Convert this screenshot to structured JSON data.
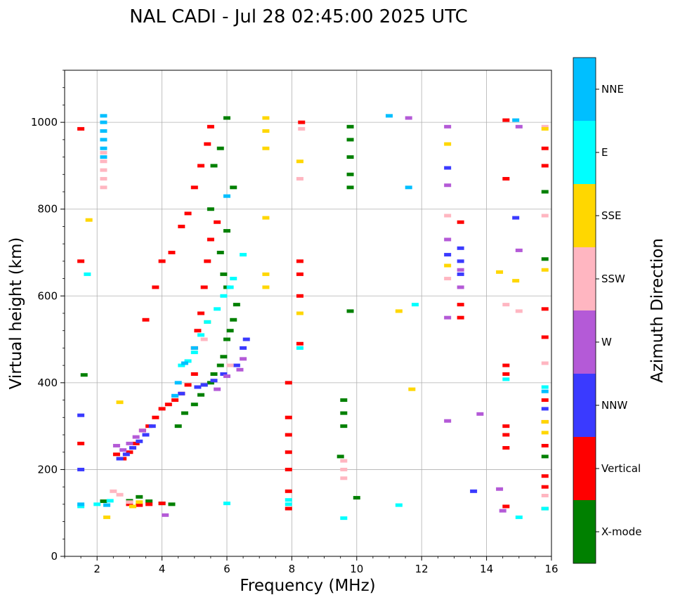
{
  "chart_data": {
    "type": "scatter",
    "title": "NAL CADI - Jul 28 02:45:00 2025 UTC",
    "xlabel": "Frequency (MHz)",
    "ylabel": "Virtual height (km)",
    "xlim": [
      1,
      16
    ],
    "ylim": [
      0,
      1120
    ],
    "xticks": [
      2,
      4,
      6,
      8,
      10,
      12,
      14,
      16
    ],
    "xtick_labels": [
      "2",
      "4",
      "6",
      "8",
      "10",
      "12",
      "14",
      "16"
    ],
    "yticks": [
      0,
      200,
      400,
      600,
      800,
      1000
    ],
    "ytick_labels": [
      "0",
      "200",
      "400",
      "600",
      "800",
      "1000"
    ],
    "grid": true,
    "colorbar": {
      "label": "Azimuth Direction",
      "categories": [
        "X-mode",
        "Vertical",
        "NNW",
        "W",
        "SSW",
        "SSE",
        "E",
        "NNE"
      ],
      "colors": [
        "#008000",
        "#ff0000",
        "#3a3aff",
        "#b45ad7",
        "#ffb6c1",
        "#ffd700",
        "#00ffff",
        "#00bfff"
      ]
    },
    "series": [
      {
        "name": "X-mode",
        "points": [
          [
            1.6,
            418
          ],
          [
            2.2,
            127
          ],
          [
            3.0,
            128
          ],
          [
            3.3,
            137
          ],
          [
            3.6,
            127
          ],
          [
            4.0,
            122
          ],
          [
            4.3,
            120
          ],
          [
            4.5,
            300
          ],
          [
            4.7,
            330
          ],
          [
            5.0,
            350
          ],
          [
            5.2,
            372
          ],
          [
            5.3,
            395
          ],
          [
            5.5,
            400
          ],
          [
            5.6,
            420
          ],
          [
            5.8,
            440
          ],
          [
            5.9,
            460
          ],
          [
            6.0,
            500
          ],
          [
            6.1,
            520
          ],
          [
            6.2,
            545
          ],
          [
            6.3,
            580
          ],
          [
            6.0,
            620
          ],
          [
            5.9,
            650
          ],
          [
            5.8,
            700
          ],
          [
            6.0,
            750
          ],
          [
            6.2,
            850
          ],
          [
            5.5,
            800
          ],
          [
            5.6,
            900
          ],
          [
            5.8,
            940
          ],
          [
            6.0,
            1010
          ],
          [
            9.8,
            850
          ],
          [
            9.8,
            880
          ],
          [
            9.8,
            920
          ],
          [
            9.8,
            960
          ],
          [
            9.8,
            990
          ],
          [
            9.6,
            300
          ],
          [
            9.6,
            330
          ],
          [
            9.6,
            360
          ],
          [
            9.8,
            565
          ],
          [
            9.5,
            230
          ],
          [
            10.0,
            135
          ],
          [
            15.8,
            685
          ],
          [
            15.8,
            840
          ],
          [
            15.8,
            230
          ],
          [
            15.8,
            110
          ]
        ]
      },
      {
        "name": "Vertical",
        "points": [
          [
            1.5,
            985
          ],
          [
            1.5,
            260
          ],
          [
            1.5,
            680
          ],
          [
            2.6,
            235
          ],
          [
            2.8,
            225
          ],
          [
            3.0,
            240
          ],
          [
            3.2,
            260
          ],
          [
            3.4,
            290
          ],
          [
            3.6,
            300
          ],
          [
            3.8,
            320
          ],
          [
            4.0,
            340
          ],
          [
            4.2,
            350
          ],
          [
            4.4,
            360
          ],
          [
            4.6,
            375
          ],
          [
            4.8,
            395
          ],
          [
            5.0,
            420
          ],
          [
            3.0,
            120
          ],
          [
            3.3,
            118
          ],
          [
            3.6,
            120
          ],
          [
            4.0,
            122
          ],
          [
            3.5,
            545
          ],
          [
            3.8,
            620
          ],
          [
            4.0,
            680
          ],
          [
            4.3,
            700
          ],
          [
            4.6,
            760
          ],
          [
            4.8,
            790
          ],
          [
            5.0,
            850
          ],
          [
            5.2,
            900
          ],
          [
            5.4,
            950
          ],
          [
            5.5,
            990
          ],
          [
            5.0,
            480
          ],
          [
            5.1,
            520
          ],
          [
            5.2,
            560
          ],
          [
            5.3,
            620
          ],
          [
            5.4,
            680
          ],
          [
            5.5,
            730
          ],
          [
            5.7,
            770
          ],
          [
            7.9,
            110
          ],
          [
            7.9,
            150
          ],
          [
            7.9,
            200
          ],
          [
            7.9,
            240
          ],
          [
            7.9,
            280
          ],
          [
            7.9,
            320
          ],
          [
            7.9,
            400
          ],
          [
            8.25,
            490
          ],
          [
            8.25,
            600
          ],
          [
            8.25,
            650
          ],
          [
            8.25,
            680
          ],
          [
            8.3,
            1000
          ],
          [
            13.2,
            550
          ],
          [
            13.2,
            580
          ],
          [
            13.2,
            770
          ],
          [
            14.6,
            115
          ],
          [
            14.6,
            250
          ],
          [
            14.6,
            280
          ],
          [
            14.6,
            300
          ],
          [
            14.6,
            420
          ],
          [
            14.6,
            440
          ],
          [
            14.6,
            870
          ],
          [
            14.6,
            1005
          ],
          [
            15.8,
            900
          ],
          [
            15.8,
            940
          ],
          [
            15.8,
            505
          ],
          [
            15.8,
            570
          ],
          [
            15.8,
            360
          ],
          [
            15.8,
            310
          ],
          [
            15.8,
            255
          ],
          [
            15.8,
            185
          ],
          [
            15.8,
            160
          ]
        ]
      },
      {
        "name": "NNW",
        "points": [
          [
            1.5,
            325
          ],
          [
            1.5,
            200
          ],
          [
            2.7,
            225
          ],
          [
            2.9,
            235
          ],
          [
            3.1,
            250
          ],
          [
            3.3,
            265
          ],
          [
            3.5,
            280
          ],
          [
            3.7,
            300
          ],
          [
            4.4,
            370
          ],
          [
            4.6,
            375
          ],
          [
            5.1,
            390
          ],
          [
            5.3,
            395
          ],
          [
            5.6,
            405
          ],
          [
            5.9,
            420
          ],
          [
            6.3,
            440
          ],
          [
            6.5,
            480
          ],
          [
            6.6,
            500
          ],
          [
            13.2,
            650
          ],
          [
            13.2,
            680
          ],
          [
            13.2,
            710
          ],
          [
            12.8,
            695
          ],
          [
            12.8,
            895
          ],
          [
            13.6,
            150
          ],
          [
            14.9,
            780
          ],
          [
            15.8,
            340
          ]
        ]
      },
      {
        "name": "W",
        "points": [
          [
            2.6,
            255
          ],
          [
            2.8,
            245
          ],
          [
            3.0,
            260
          ],
          [
            3.2,
            275
          ],
          [
            3.4,
            290
          ],
          [
            4.1,
            95
          ],
          [
            5.7,
            385
          ],
          [
            6.0,
            415
          ],
          [
            6.4,
            430
          ],
          [
            6.5,
            455
          ],
          [
            12.8,
            550
          ],
          [
            12.8,
            730
          ],
          [
            12.8,
            990
          ],
          [
            12.8,
            855
          ],
          [
            13.2,
            620
          ],
          [
            13.2,
            660
          ],
          [
            11.6,
            1010
          ],
          [
            12.8,
            312
          ],
          [
            13.8,
            328
          ],
          [
            14.4,
            155
          ],
          [
            14.5,
            105
          ],
          [
            15.0,
            990
          ],
          [
            15.0,
            705
          ]
        ]
      },
      {
        "name": "SSW",
        "points": [
          [
            2.2,
            870
          ],
          [
            2.2,
            890
          ],
          [
            2.2,
            910
          ],
          [
            2.2,
            930
          ],
          [
            2.2,
            850
          ],
          [
            2.5,
            150
          ],
          [
            2.7,
            142
          ],
          [
            3.0,
            125
          ],
          [
            5.3,
            500
          ],
          [
            6.1,
            440
          ],
          [
            8.25,
            870
          ],
          [
            8.3,
            985
          ],
          [
            9.6,
            180
          ],
          [
            9.6,
            200
          ],
          [
            9.6,
            220
          ],
          [
            12.8,
            785
          ],
          [
            12.8,
            640
          ],
          [
            14.6,
            580
          ],
          [
            15.0,
            565
          ],
          [
            15.8,
            445
          ],
          [
            15.8,
            785
          ],
          [
            15.8,
            140
          ],
          [
            15.8,
            990
          ]
        ]
      },
      {
        "name": "SSE",
        "points": [
          [
            1.75,
            775
          ],
          [
            2.3,
            90
          ],
          [
            2.7,
            355
          ],
          [
            3.1,
            115
          ],
          [
            3.3,
            125
          ],
          [
            5.4,
            540
          ],
          [
            7.2,
            1010
          ],
          [
            7.2,
            980
          ],
          [
            7.2,
            940
          ],
          [
            7.2,
            780
          ],
          [
            7.2,
            650
          ],
          [
            7.2,
            620
          ],
          [
            8.25,
            560
          ],
          [
            8.25,
            910
          ],
          [
            12.8,
            670
          ],
          [
            12.8,
            950
          ],
          [
            11.3,
            565
          ],
          [
            11.7,
            385
          ],
          [
            14.4,
            655
          ],
          [
            14.9,
            635
          ],
          [
            15.8,
            985
          ],
          [
            15.8,
            660
          ],
          [
            15.8,
            285
          ],
          [
            15.8,
            310
          ]
        ]
      },
      {
        "name": "E",
        "points": [
          [
            1.5,
            115
          ],
          [
            1.7,
            650
          ],
          [
            2.0,
            120
          ],
          [
            2.4,
            128
          ],
          [
            4.6,
            440
          ],
          [
            4.8,
            450
          ],
          [
            5.0,
            470
          ],
          [
            5.2,
            510
          ],
          [
            5.4,
            540
          ],
          [
            5.7,
            570
          ],
          [
            5.9,
            600
          ],
          [
            6.1,
            620
          ],
          [
            6.2,
            640
          ],
          [
            6.5,
            695
          ],
          [
            7.9,
            120
          ],
          [
            7.9,
            130
          ],
          [
            8.25,
            480
          ],
          [
            9.6,
            88
          ],
          [
            11.3,
            118
          ],
          [
            11.8,
            580
          ],
          [
            14.6,
            408
          ],
          [
            15.0,
            90
          ],
          [
            15.8,
            390
          ],
          [
            15.8,
            110
          ],
          [
            6.0,
            122
          ]
        ]
      },
      {
        "name": "NNE",
        "points": [
          [
            2.2,
            960
          ],
          [
            2.2,
            980
          ],
          [
            2.2,
            1000
          ],
          [
            2.2,
            1015
          ],
          [
            2.2,
            940
          ],
          [
            2.2,
            920
          ],
          [
            1.5,
            120
          ],
          [
            2.3,
            118
          ],
          [
            4.4,
            370
          ],
          [
            4.5,
            400
          ],
          [
            4.7,
            445
          ],
          [
            5.0,
            480
          ],
          [
            6.0,
            830
          ],
          [
            11.0,
            1015
          ],
          [
            11.6,
            850
          ],
          [
            15.8,
            380
          ],
          [
            14.9,
            1005
          ]
        ]
      }
    ]
  }
}
